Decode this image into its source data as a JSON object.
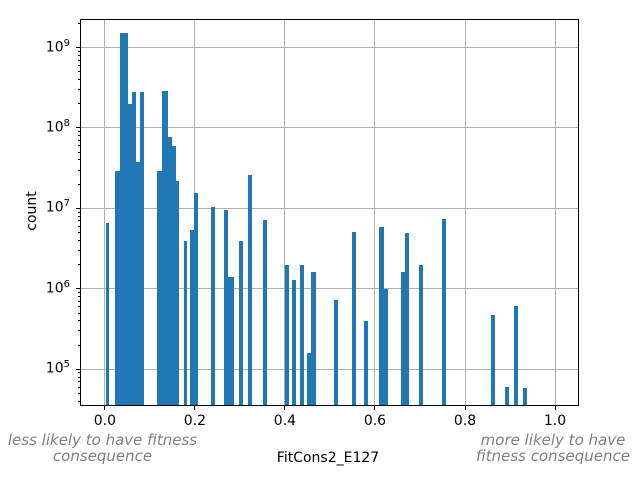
{
  "chart_data": {
    "type": "bar",
    "title": "",
    "xlabel": "FitCons2_E127",
    "ylabel": "count",
    "y_scale": "log",
    "grid": true,
    "legend": false,
    "bar_color": "#1f77b4",
    "grid_color": "#b0b0b0",
    "spine_color": "#000000",
    "xlim": [
      -0.053,
      1.051
    ],
    "ylim": [
      36000,
      2200000000
    ],
    "x_ticks": [
      0.0,
      0.2,
      0.4,
      0.6,
      0.8,
      1.0
    ],
    "x_tick_labels": [
      "0.0",
      "0.2",
      "0.4",
      "0.6",
      "0.8",
      "1.0"
    ],
    "y_tick_exponents": [
      9,
      8,
      7,
      6,
      5
    ],
    "bars": [
      [
        0.002,
        0.01,
        6500000.0
      ],
      [
        0.022,
        0.033,
        29000000.0
      ],
      [
        0.033,
        0.051,
        1500000000.0
      ],
      [
        0.051,
        0.06,
        200000000.0
      ],
      [
        0.06,
        0.069,
        280000000.0
      ],
      [
        0.069,
        0.078,
        38000000.0
      ],
      [
        0.078,
        0.088,
        280000000.0
      ],
      [
        0.116,
        0.126,
        29000000.0
      ],
      [
        0.126,
        0.141,
        290000000.0
      ],
      [
        0.141,
        0.15,
        78000000.0
      ],
      [
        0.15,
        0.158,
        59000000.0
      ],
      [
        0.158,
        0.165,
        22000000.0
      ],
      [
        0.175,
        0.182,
        3900000.0
      ],
      [
        0.19,
        0.197,
        5400000.0
      ],
      [
        0.197,
        0.206,
        15500000.0
      ],
      [
        0.236,
        0.245,
        10500000.0
      ],
      [
        0.264,
        0.274,
        9600000.0
      ],
      [
        0.274,
        0.287,
        1400000.0
      ],
      [
        0.298,
        0.307,
        3900000.0
      ],
      [
        0.318,
        0.327,
        26000000.0
      ],
      [
        0.351,
        0.36,
        7100000.0
      ],
      [
        0.4,
        0.409,
        2000000.0
      ],
      [
        0.416,
        0.425,
        1300000.0
      ],
      [
        0.433,
        0.442,
        2000000.0
      ],
      [
        0.449,
        0.458,
        160000.0
      ],
      [
        0.458,
        0.468,
        1600000.0
      ],
      [
        0.508,
        0.517,
        720000.0
      ],
      [
        0.548,
        0.557,
        5100000.0
      ],
      [
        0.576,
        0.585,
        400000.0
      ],
      [
        0.61,
        0.619,
        5900000.0
      ],
      [
        0.619,
        0.628,
        1000000.0
      ],
      [
        0.658,
        0.667,
        1600000.0
      ],
      [
        0.667,
        0.676,
        4900000.0
      ],
      [
        0.698,
        0.707,
        2000000.0
      ],
      [
        0.749,
        0.758,
        7300000.0
      ],
      [
        0.858,
        0.867,
        480000.0
      ],
      [
        0.889,
        0.898,
        61000.0
      ],
      [
        0.908,
        0.917,
        610000.0
      ],
      [
        0.928,
        0.937,
        58000.0
      ]
    ]
  },
  "annotations": {
    "left": "less likely to have fitness\nconsequence",
    "right": "more likely to have\nfitness consequence"
  },
  "text_colors": {
    "axis_text": "#000000",
    "annotation_gray": "#808080"
  }
}
